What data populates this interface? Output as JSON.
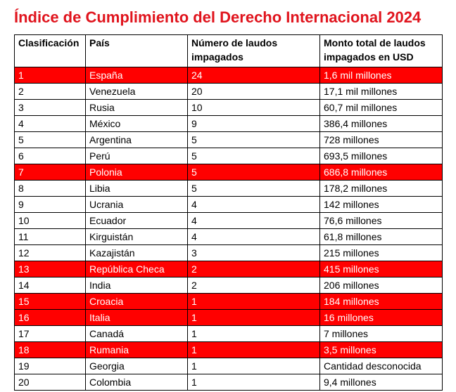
{
  "title": "Índice de Cumplimiento del Derecho Internacional 2024",
  "headers": [
    "Clasificación",
    "País",
    "Número de laudos impagados",
    "Monto total de laudos impagados en USD"
  ],
  "highlight_color": "#ff0000",
  "title_color": "#e0141d",
  "rows": [
    {
      "rank": "1",
      "country": "España",
      "awards": "24",
      "amount": "1,6 mil millones",
      "highlight": true
    },
    {
      "rank": "2",
      "country": "Venezuela",
      "awards": "20",
      "amount": "17,1 mil millones",
      "highlight": false
    },
    {
      "rank": "3",
      "country": "Rusia",
      "awards": "10",
      "amount": "60,7 mil millones",
      "highlight": false
    },
    {
      "rank": "4",
      "country": "México",
      "awards": "9",
      "amount": "386,4 millones",
      "highlight": false
    },
    {
      "rank": "5",
      "country": "Argentina",
      "awards": "5",
      "amount": "728 millones",
      "highlight": false
    },
    {
      "rank": "6",
      "country": "Perú",
      "awards": "5",
      "amount": "693,5 millones",
      "highlight": false
    },
    {
      "rank": "7",
      "country": "Polonia",
      "awards": "5",
      "amount": "686,8 millones",
      "highlight": true
    },
    {
      "rank": "8",
      "country": "Libia",
      "awards": "5",
      "amount": "178,2 millones",
      "highlight": false
    },
    {
      "rank": "9",
      "country": "Ucrania",
      "awards": "4",
      "amount": "142 millones",
      "highlight": false
    },
    {
      "rank": "10",
      "country": "Ecuador",
      "awards": "4",
      "amount": "76,6 millones",
      "highlight": false
    },
    {
      "rank": "11",
      "country": "Kirguistán",
      "awards": "4",
      "amount": "61,8 millones",
      "highlight": false
    },
    {
      "rank": "12",
      "country": "Kazajistán",
      "awards": "3",
      "amount": "215 millones",
      "highlight": false
    },
    {
      "rank": "13",
      "country": "República Checa",
      "awards": "2",
      "amount": "415 millones",
      "highlight": true
    },
    {
      "rank": "14",
      "country": "India",
      "awards": "2",
      "amount": "206 millones",
      "highlight": false
    },
    {
      "rank": "15",
      "country": "Croacia",
      "awards": "1",
      "amount": "184 millones",
      "highlight": true
    },
    {
      "rank": "16",
      "country": "Italia",
      "awards": "1",
      "amount": "16 millones",
      "highlight": true
    },
    {
      "rank": "17",
      "country": "Canadá",
      "awards": "1",
      "amount": "7 millones",
      "highlight": false
    },
    {
      "rank": "18",
      "country": "Rumania",
      "awards": "1",
      "amount": "3,5 millones",
      "highlight": true
    },
    {
      "rank": "19",
      "country": "Georgia",
      "awards": "1",
      "amount": "Cantidad desconocida",
      "highlight": false
    },
    {
      "rank": "20",
      "country": "Colombia",
      "awards": "1",
      "amount": "9,4 millones",
      "highlight": false
    }
  ]
}
